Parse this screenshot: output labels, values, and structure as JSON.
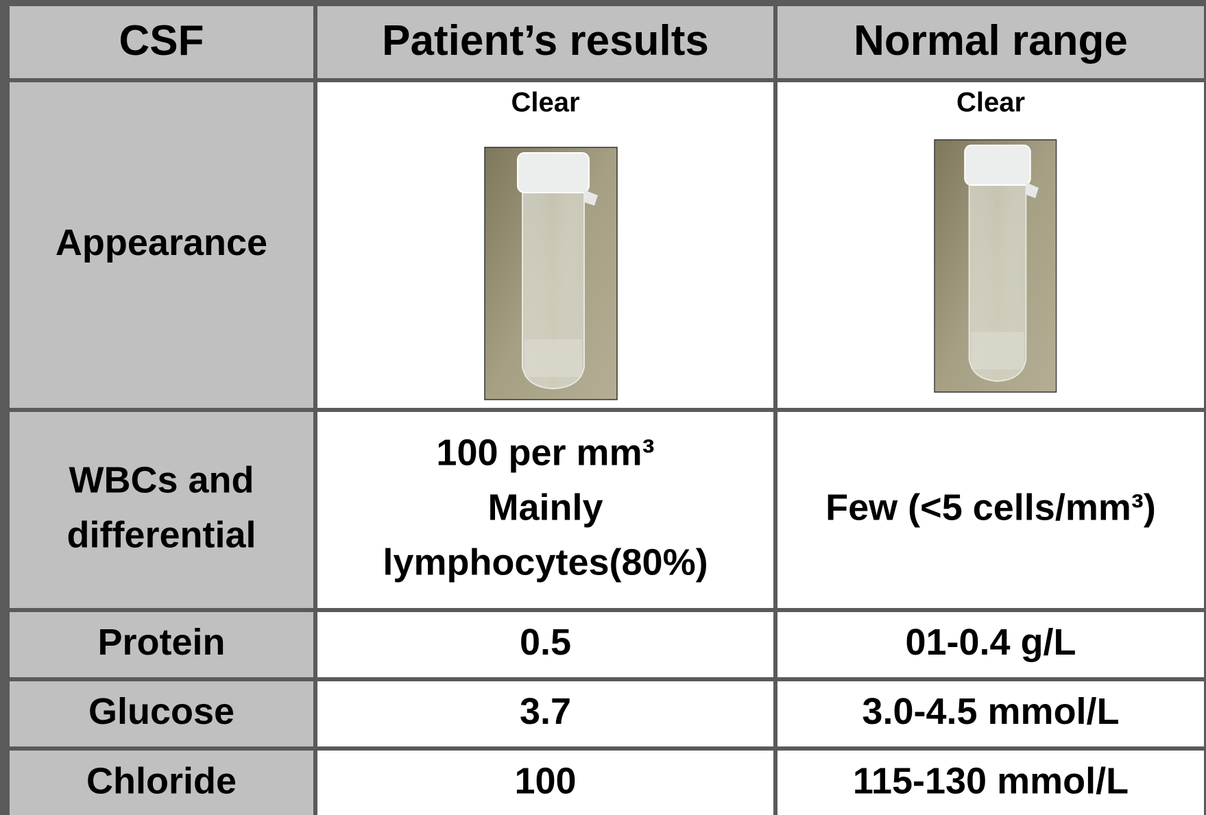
{
  "table": {
    "header": [
      "CSF",
      "Patient’s results",
      "Normal range"
    ],
    "rows": [
      [
        [
          "Appearance"
        ],
        [
          "Clear"
        ],
        [
          "Clear"
        ]
      ],
      [
        [
          "WBCs and",
          "differential"
        ],
        [
          "100 per mm³",
          "Mainly",
          "lymphocytes(80%)"
        ],
        [
          "Few (<5 cells/mm³)"
        ]
      ],
      [
        [
          "Protein"
        ],
        [
          "0.5"
        ],
        [
          "01-0.4 g/L"
        ]
      ],
      [
        [
          "Glucose"
        ],
        [
          "3.7"
        ],
        [
          "3.0-4.5 mmol/L"
        ]
      ],
      [
        [
          "Chloride"
        ],
        [
          "100"
        ],
        [
          "115-130 mmol/L"
        ]
      ]
    ]
  }
}
